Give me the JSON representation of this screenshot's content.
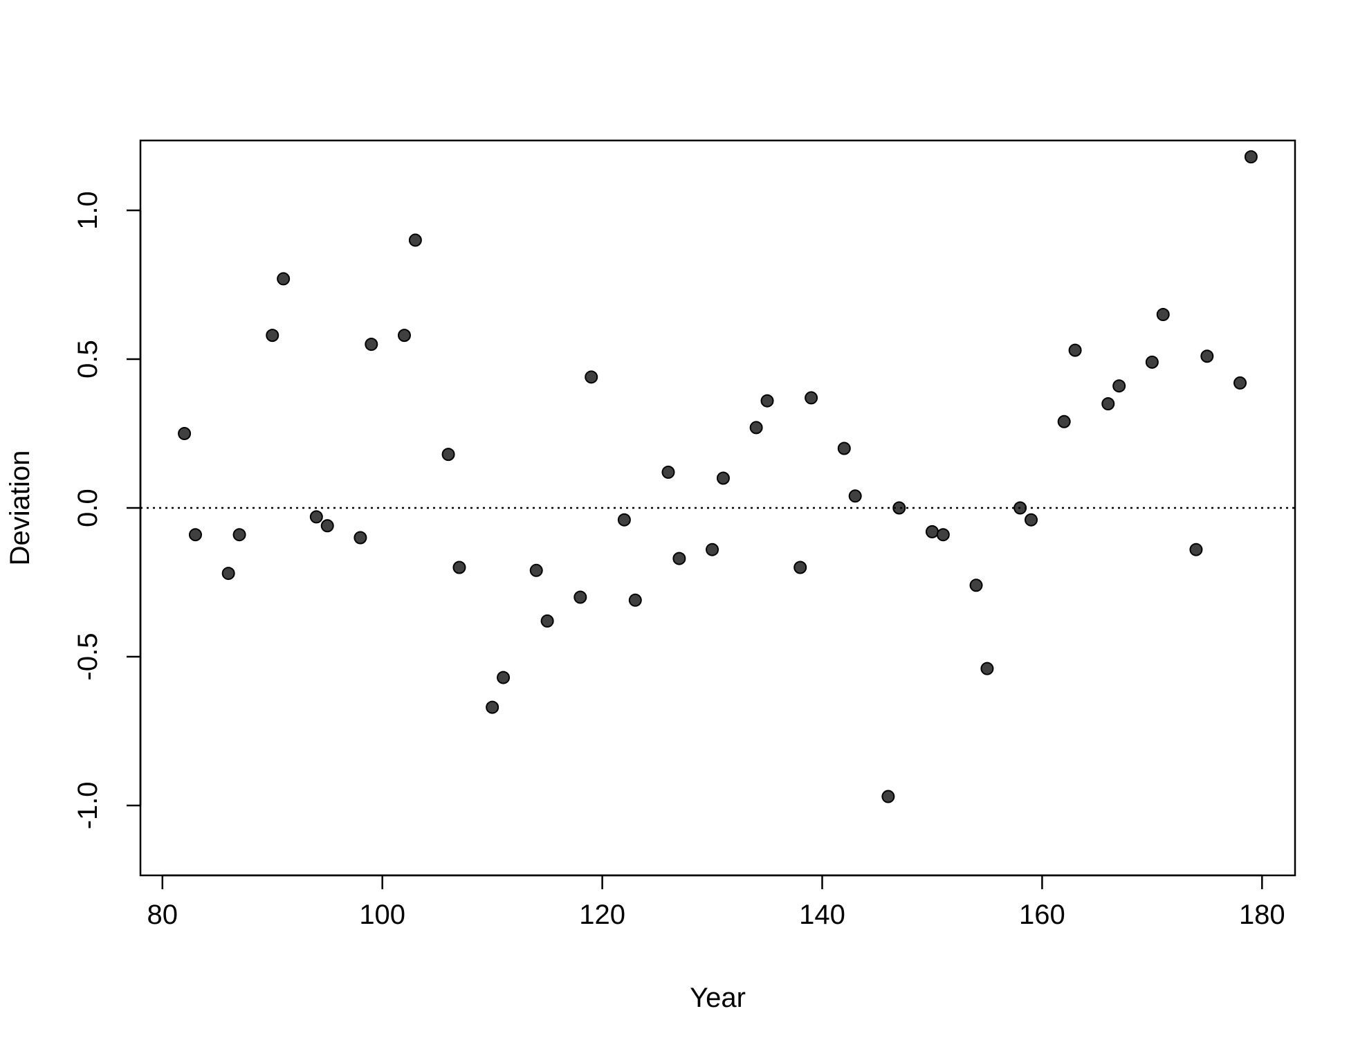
{
  "chart_data": {
    "type": "scatter",
    "title": "",
    "xlabel": "Year",
    "ylabel": "Deviation",
    "xlim": [
      78,
      183
    ],
    "ylim": [
      -1.235,
      1.235
    ],
    "xticks": [
      80,
      100,
      120,
      140,
      160,
      180
    ],
    "xtick_labels": [
      "80",
      "100",
      "120",
      "140",
      "160",
      "180"
    ],
    "yticks": [
      -1.0,
      -0.5,
      0.0,
      0.5,
      1.0
    ],
    "ytick_labels": [
      "-1.0",
      "-0.5",
      "0.0",
      "0.5",
      "1.0"
    ],
    "grid": false,
    "legend": "none",
    "reference_line": {
      "y": 0.0,
      "style": "dotted"
    },
    "point_color": "#404040",
    "x": [
      82,
      83,
      86,
      87,
      90,
      91,
      94,
      95,
      98,
      99,
      102,
      103,
      106,
      107,
      110,
      111,
      114,
      115,
      118,
      119,
      122,
      123,
      126,
      127,
      130,
      131,
      134,
      135,
      138,
      139,
      142,
      143,
      146,
      147,
      150,
      151,
      154,
      155,
      158,
      159,
      162,
      163,
      166,
      167,
      170,
      171,
      174,
      175,
      178,
      179
    ],
    "y": [
      0.25,
      -0.09,
      -0.22,
      -0.09,
      0.58,
      0.77,
      -0.03,
      -0.06,
      -0.1,
      0.55,
      0.58,
      0.9,
      0.18,
      -0.2,
      -0.67,
      -0.57,
      -0.21,
      -0.38,
      -0.3,
      0.44,
      -0.04,
      -0.31,
      0.12,
      -0.17,
      -0.14,
      0.1,
      0.27,
      0.36,
      -0.2,
      0.37,
      0.2,
      0.04,
      -0.97,
      0.0,
      -0.08,
      -0.09,
      -0.26,
      -0.54,
      0.0,
      -0.04,
      0.29,
      0.53,
      0.35,
      0.41,
      0.49,
      0.65,
      -0.14,
      0.51,
      0.42,
      1.18
    ]
  }
}
